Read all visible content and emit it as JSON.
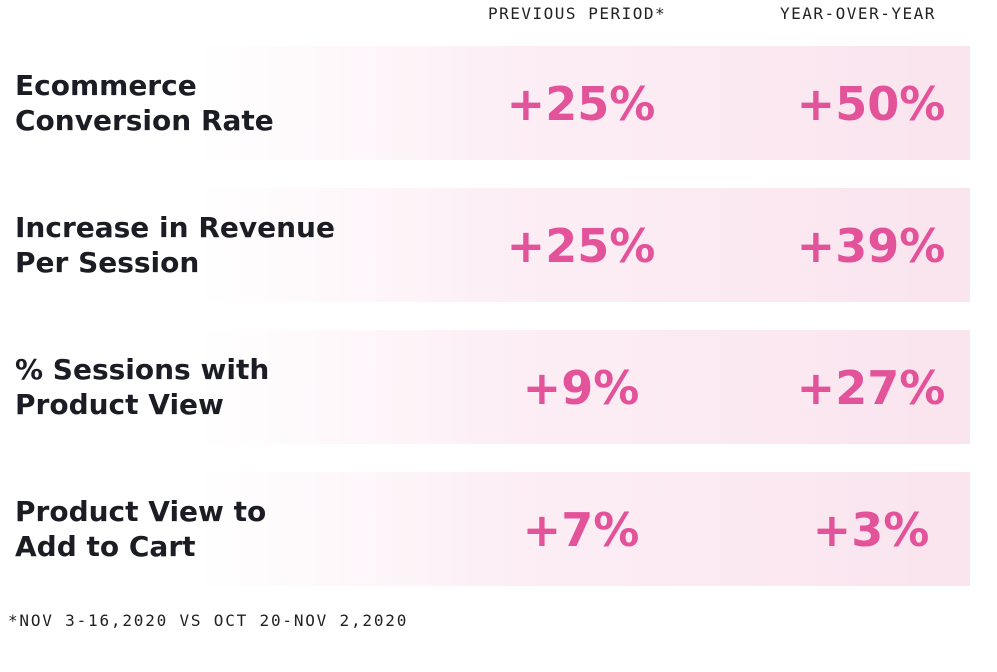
{
  "chart_data": {
    "type": "table",
    "columns": [
      "PREVIOUS PERIOD*",
      "YEAR-OVER-YEAR"
    ],
    "rows": [
      {
        "label_lines": [
          "Ecommerce",
          "Conversion Rate"
        ],
        "values": [
          "+25%",
          "+50%"
        ]
      },
      {
        "label_lines": [
          "Increase in Revenue",
          "Per Session"
        ],
        "values": [
          "+25%",
          "+39%"
        ]
      },
      {
        "label_lines": [
          "% Sessions with",
          "Product View"
        ],
        "values": [
          "+9%",
          "+27%"
        ]
      },
      {
        "label_lines": [
          "Product View to",
          "Add to Cart"
        ],
        "values": [
          "+7%",
          "+3%"
        ]
      }
    ],
    "footnote": "*NOV 3-16,2020 VS OCT 20-NOV 2,2020"
  },
  "colors": {
    "value": "#e2539a",
    "label": "#1c1d24",
    "row_tint": "#fae4ee"
  }
}
